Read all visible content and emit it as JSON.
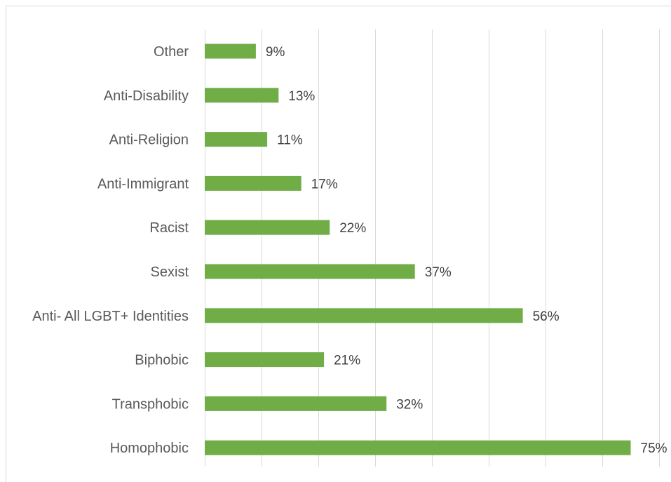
{
  "chart_data": {
    "type": "bar",
    "orientation": "horizontal",
    "categories": [
      "Other",
      "Anti-Disability",
      "Anti-Religion",
      "Anti-Immigrant",
      "Racist",
      "Sexist",
      "Anti- All LGBT+ Identities",
      "Biphobic",
      "Transphobic",
      "Homophobic"
    ],
    "values": [
      9,
      13,
      11,
      17,
      22,
      37,
      56,
      21,
      32,
      75
    ],
    "value_labels": [
      "9%",
      "13%",
      "11%",
      "17%",
      "22%",
      "37%",
      "56%",
      "21%",
      "32%",
      "75%"
    ],
    "title": "",
    "xlabel": "",
    "ylabel": "",
    "xlim": [
      0,
      80
    ],
    "grid": "vertical",
    "legend": "none",
    "colors": {
      "bar": "#70ad47",
      "grid": "#d9d9d9",
      "frame": "#d9d9d9",
      "text": "#595959"
    }
  }
}
